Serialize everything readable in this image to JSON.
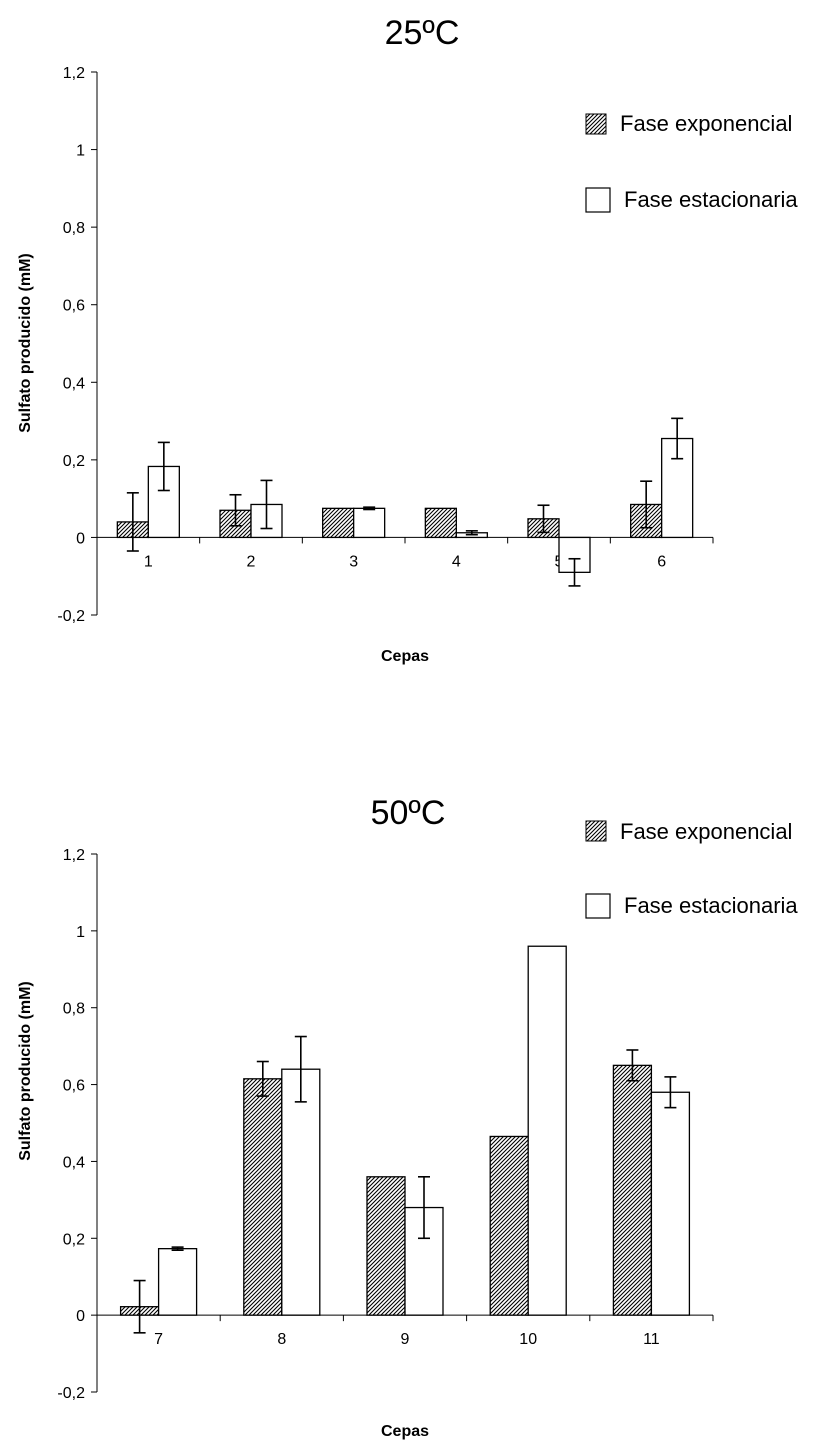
{
  "chart_data": [
    {
      "type": "bar",
      "title": "25ºC",
      "xlabel": "Cepas",
      "ylabel": "Sulfato producido (mM)",
      "ylim": [
        -0.2,
        1.2
      ],
      "y_ticks": [
        "1,2",
        "1",
        "0,8",
        "0,6",
        "0,4",
        "0,2",
        "0",
        "-0,2"
      ],
      "categories": [
        "1",
        "2",
        "3",
        "4",
        "5",
        "6"
      ],
      "series": [
        {
          "name": "Fase exponencial",
          "pattern": "hatched",
          "values": [
            0.04,
            0.07,
            0.075,
            0.075,
            0.048,
            0.085
          ],
          "errors": [
            0.075,
            0.04,
            0,
            0,
            0.035,
            0.06
          ]
        },
        {
          "name": "Fase estacionaria",
          "pattern": "white",
          "values": [
            0.183,
            0.085,
            0.075,
            0.012,
            -0.09,
            0.255
          ],
          "errors": [
            0.062,
            0.062,
            0.003,
            0.005,
            0.035,
            0.052
          ]
        }
      ],
      "legend_position": "top-right",
      "grid": false
    },
    {
      "type": "bar",
      "title": "50ºC",
      "xlabel": "Cepas",
      "ylabel": "Sulfato producido (mM)",
      "ylim": [
        -0.2,
        1.2
      ],
      "y_ticks": [
        "1,2",
        "1",
        "0,8",
        "0,6",
        "0,4",
        "0,2",
        "0",
        "-0,2"
      ],
      "categories": [
        "7",
        "8",
        "9",
        "10",
        "11"
      ],
      "series": [
        {
          "name": "Fase exponencial",
          "pattern": "hatched",
          "values": [
            0.022,
            0.615,
            0.36,
            0.465,
            0.65
          ],
          "errors": [
            0.068,
            0.045,
            0,
            0,
            0.04
          ]
        },
        {
          "name": "Fase estacionaria",
          "pattern": "white",
          "values": [
            0.173,
            0.64,
            0.28,
            0.96,
            0.58
          ],
          "errors": [
            0.004,
            0.085,
            0.08,
            0,
            0.04
          ]
        }
      ],
      "legend_position": "top-right",
      "grid": false
    }
  ]
}
